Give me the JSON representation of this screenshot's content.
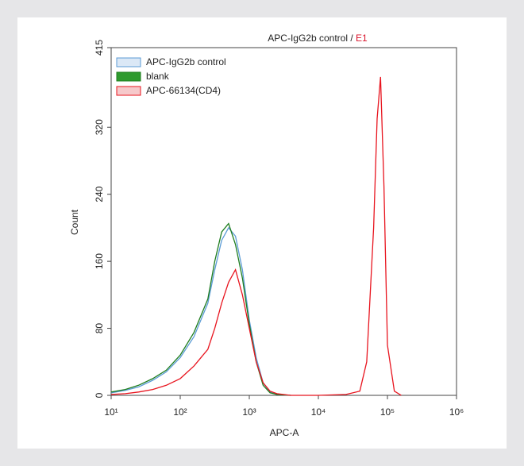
{
  "chart_data": {
    "type": "line",
    "title": {
      "sample": "APC-IgG2b control",
      "separator": "/",
      "gate": "E1"
    },
    "gate_color": "#d9142b",
    "x_label": "APC-A",
    "y_label": "Count",
    "x_scale": "log",
    "x": [
      10,
      16,
      25,
      40,
      63,
      100,
      158,
      251,
      316,
      398,
      501,
      631,
      794,
      1000,
      1259,
      1585,
      1995,
      2512,
      3981,
      10000,
      25119,
      39811,
      50119,
      63096,
      70795,
      79433,
      89125,
      100000,
      125893,
      158489
    ],
    "series": [
      {
        "name": "APC-IgG2b control",
        "color": "#5b9bd5",
        "fill": "#dbe8f6",
        "values": [
          3,
          6,
          10,
          18,
          28,
          45,
          70,
          110,
          150,
          185,
          200,
          190,
          150,
          90,
          45,
          15,
          4,
          1,
          0,
          null,
          null,
          null,
          null,
          null,
          null,
          null,
          null,
          null,
          null,
          null
        ]
      },
      {
        "name": "blank",
        "color": "#1e7d1e",
        "fill": "#2e9a2e",
        "values": [
          4,
          7,
          12,
          20,
          30,
          48,
          75,
          115,
          160,
          195,
          205,
          180,
          140,
          85,
          40,
          12,
          3,
          1,
          0,
          null,
          null,
          null,
          null,
          null,
          null,
          null,
          null,
          null,
          null,
          null
        ]
      },
      {
        "name": "APC-66134(CD4)",
        "color": "#e8141e",
        "fill": "#f6c9cb",
        "values": [
          1,
          2,
          4,
          7,
          12,
          20,
          35,
          55,
          80,
          110,
          135,
          150,
          120,
          80,
          40,
          15,
          5,
          2,
          0,
          0,
          1,
          5,
          40,
          200,
          330,
          380,
          250,
          60,
          5,
          0
        ]
      }
    ],
    "xlim": [
      10,
      1000000
    ],
    "xticks": [
      {
        "value": 10,
        "label": "10¹"
      },
      {
        "value": 100,
        "label": "10²"
      },
      {
        "value": 1000,
        "label": "10³"
      },
      {
        "value": 10000,
        "label": "10⁴"
      },
      {
        "value": 100000,
        "label": "10⁵"
      },
      {
        "value": 1000000,
        "label": "10⁶"
      }
    ],
    "ylim": [
      0,
      415
    ],
    "yticks": [
      0,
      80,
      160,
      240,
      320,
      415
    ],
    "legend": "top-left"
  }
}
